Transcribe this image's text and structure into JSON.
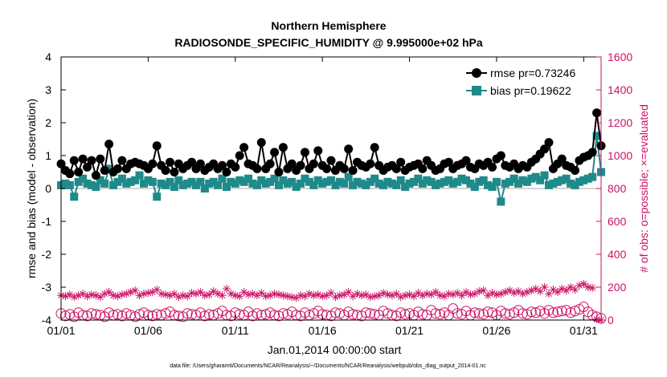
{
  "chart_data": {
    "type": "line",
    "title": "Northern Hemisphere",
    "subtitle": "RADIOSONDE_SPECIFIC_HUMIDITY @ 9.995000e+02 hPa",
    "xlabel": "Jan.01,2014 00:00:00 start",
    "ylabel": "rmse and bias (model - observation)",
    "ylabel_right": "# of obs: o=possible; ×=evaluated",
    "x_ticks": [
      "01/01",
      "01/06",
      "01/11",
      "01/16",
      "01/21",
      "01/26",
      "01/31"
    ],
    "x_range": [
      0,
      124
    ],
    "y_left_range": [
      -4,
      4
    ],
    "y_left_ticks": [
      "-4",
      "-3",
      "-2",
      "-1",
      "0",
      "1",
      "2",
      "3",
      "4"
    ],
    "y_right_range": [
      0,
      1600
    ],
    "y_right_ticks": [
      "0",
      "200",
      "400",
      "600",
      "800",
      "1000",
      "1200",
      "1400",
      "1600"
    ],
    "legend": {
      "position": "top-right"
    },
    "colors": {
      "rmse": "#000000",
      "bias": "#1f8a8a",
      "obs": "#cc1166",
      "zero_line": "#aaaaaa"
    },
    "series": [
      {
        "name": "rmse pr=0.73246",
        "legend_label": "rmse pr=0.73246",
        "values": [
          0.75,
          0.55,
          0.45,
          0.85,
          0.5,
          0.9,
          0.65,
          0.85,
          0.4,
          0.9,
          0.55,
          1.35,
          0.5,
          0.6,
          0.85,
          0.6,
          0.75,
          0.8,
          0.75,
          0.7,
          0.6,
          0.75,
          1.3,
          0.7,
          0.55,
          0.8,
          0.5,
          0.75,
          0.6,
          0.7,
          0.8,
          0.6,
          0.75,
          0.55,
          0.65,
          0.75,
          0.6,
          0.7,
          0.5,
          0.75,
          0.65,
          1.0,
          1.25,
          0.75,
          0.7,
          0.6,
          1.4,
          0.6,
          0.75,
          1.1,
          0.5,
          1.25,
          0.6,
          0.75,
          0.55,
          0.7,
          1.1,
          0.6,
          0.75,
          1.15,
          0.7,
          0.6,
          0.85,
          0.55,
          0.7,
          0.6,
          1.2,
          0.55,
          0.8,
          0.7,
          0.65,
          0.75,
          1.25,
          0.7,
          0.55,
          0.65,
          0.7,
          0.6,
          0.8,
          0.55,
          0.65,
          0.7,
          0.75,
          0.6,
          0.85,
          0.7,
          0.55,
          0.6,
          0.75,
          0.8,
          0.6,
          0.7,
          0.75,
          0.85,
          0.65,
          0.6,
          0.75,
          0.7,
          0.8,
          0.65,
          0.9,
          1.0,
          0.7,
          0.65,
          0.75,
          0.6,
          0.7,
          0.65,
          0.8,
          0.9,
          1.05,
          1.2,
          1.4,
          0.6,
          0.75,
          0.9,
          0.7,
          0.65,
          0.55,
          0.85,
          0.95,
          1.0,
          1.1,
          2.3,
          1.3
        ]
      },
      {
        "name": "bias pr=0.19622",
        "legend_label": "bias pr=0.19622",
        "values": [
          0.1,
          0.15,
          0.1,
          -0.25,
          0.2,
          0.3,
          0.15,
          0.1,
          0.05,
          0.25,
          0.15,
          0.6,
          0.1,
          0.2,
          0.3,
          0.15,
          0.2,
          0.25,
          0.4,
          0.15,
          0.25,
          0.2,
          -0.25,
          0.15,
          0.1,
          0.2,
          0.05,
          0.25,
          0.1,
          0.15,
          0.2,
          0.1,
          0.2,
          0.0,
          0.15,
          0.2,
          0.1,
          0.3,
          0.05,
          0.2,
          0.15,
          0.25,
          0.2,
          0.3,
          0.15,
          0.1,
          0.25,
          0.15,
          0.2,
          0.3,
          0.1,
          0.25,
          0.15,
          0.2,
          0.05,
          0.15,
          0.3,
          0.2,
          0.1,
          0.25,
          0.15,
          0.2,
          0.25,
          0.1,
          0.2,
          0.15,
          0.35,
          0.1,
          0.2,
          0.15,
          0.1,
          0.2,
          0.3,
          0.15,
          0.1,
          0.2,
          0.15,
          0.1,
          0.25,
          0.05,
          0.15,
          0.2,
          0.3,
          0.15,
          0.25,
          0.2,
          0.1,
          0.15,
          0.2,
          0.25,
          0.15,
          0.2,
          0.3,
          0.25,
          0.15,
          0.05,
          0.2,
          0.25,
          0.1,
          0.05,
          0.2,
          -0.4,
          0.15,
          0.2,
          0.3,
          0.15,
          0.25,
          0.2,
          0.3,
          0.35,
          0.25,
          0.4,
          0.1,
          0.15,
          0.2,
          0.25,
          0.3,
          0.15,
          0.1,
          0.2,
          0.25,
          0.3,
          0.35,
          1.6,
          0.5
        ]
      },
      {
        "name": "possible",
        "axis": "right",
        "marker": "o",
        "values": [
          40,
          25,
          35,
          20,
          45,
          30,
          25,
          40,
          35,
          30,
          20,
          45,
          30,
          35,
          25,
          40,
          30,
          20,
          35,
          45,
          30,
          25,
          35,
          30,
          40,
          50,
          30,
          25,
          20,
          40,
          35,
          30,
          45,
          25,
          35,
          30,
          40,
          55,
          30,
          25,
          45,
          35,
          30,
          50,
          25,
          40,
          30,
          35,
          45,
          30,
          25,
          40,
          35,
          50,
          30,
          25,
          45,
          30,
          40,
          55,
          35,
          30,
          25,
          45,
          40,
          30,
          50,
          35,
          30,
          25,
          45,
          40,
          35,
          30,
          55,
          40,
          30,
          25,
          45,
          35,
          40,
          30,
          50,
          35,
          30,
          60,
          40,
          35,
          45,
          30,
          70,
          40,
          35,
          55,
          30,
          45,
          40,
          35,
          50,
          45,
          30,
          55,
          40,
          35,
          45,
          60,
          40,
          35,
          50,
          45,
          55,
          40,
          60,
          45,
          50,
          55,
          60,
          45,
          55,
          65,
          80,
          50,
          30,
          20,
          10
        ]
      },
      {
        "name": "evaluated",
        "axis": "right",
        "marker": "x",
        "values": [
          150,
          145,
          155,
          140,
          150,
          160,
          145,
          155,
          150,
          140,
          160,
          170,
          150,
          145,
          155,
          160,
          170,
          180,
          150,
          160,
          165,
          170,
          185,
          160,
          155,
          150,
          160,
          140,
          150,
          145,
          165,
          160,
          170,
          150,
          155,
          175,
          160,
          150,
          190,
          160,
          150,
          145,
          170,
          155,
          160,
          150,
          165,
          145,
          150,
          160,
          155,
          150,
          145,
          140,
          135,
          150,
          145,
          160,
          150,
          155,
          145,
          150,
          165,
          140,
          150,
          155,
          170,
          145,
          160,
          150,
          155,
          140,
          145,
          150,
          165,
          155,
          150,
          160,
          140,
          150,
          155,
          145,
          165,
          150,
          160,
          155,
          170,
          150,
          145,
          160,
          155,
          165,
          150,
          170,
          155,
          160,
          175,
          180,
          150,
          165,
          155,
          160,
          170,
          180,
          165,
          175,
          160,
          170,
          180,
          190,
          175,
          200,
          160,
          185,
          170,
          190,
          180,
          200,
          185,
          210,
          220,
          200,
          195,
          5,
          0
        ]
      }
    ]
  },
  "footer": {
    "data_file": "data file: /Users/gharamti/Documents/NCAR/Reanalysis/~/Documents/NCAR/Reanalysis/webpub/obs_diag_output_2014-01.nc"
  }
}
